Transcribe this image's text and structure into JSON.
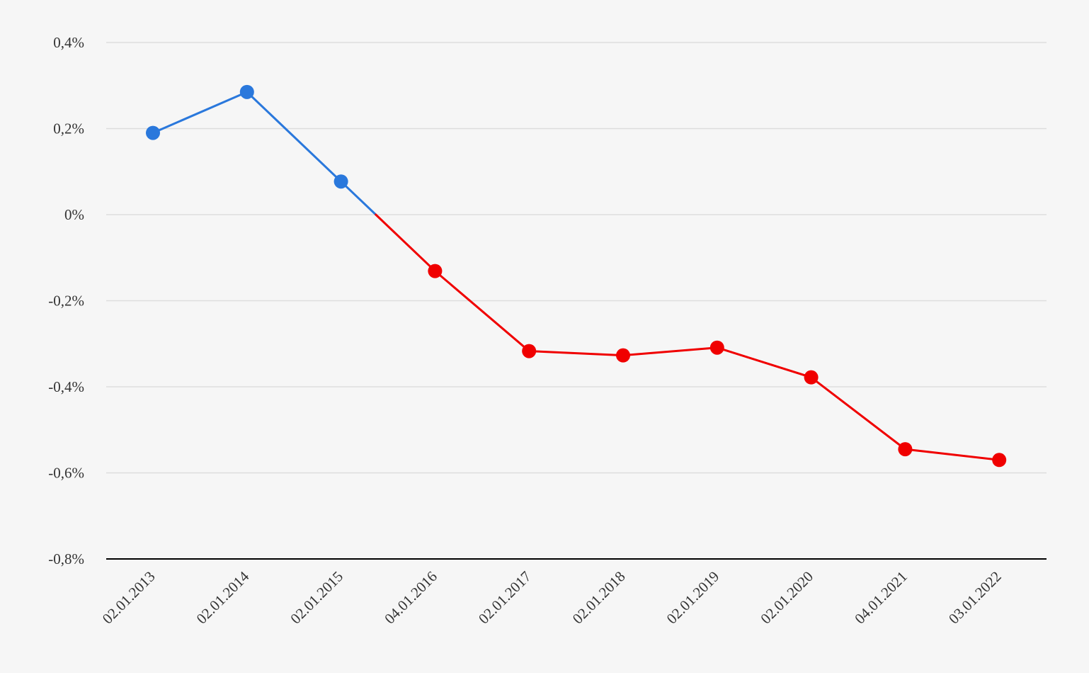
{
  "chart_data": {
    "type": "line",
    "title": "",
    "xlabel": "",
    "ylabel": "",
    "categories": [
      "02.01.2013",
      "02.01.2014",
      "02.01.2015",
      "04.01.2016",
      "02.01.2017",
      "02.01.2018",
      "02.01.2019",
      "02.01.2020",
      "04.01.2021",
      "03.01.2022"
    ],
    "series": [
      {
        "values": [
          0.19,
          0.285,
          0.077,
          -0.131,
          -0.317,
          -0.327,
          -0.309,
          -0.378,
          -0.545,
          -0.57
        ]
      }
    ],
    "ylim": [
      -0.8,
      0.4
    ],
    "y_ticks": [
      0.4,
      0.2,
      0,
      -0.2,
      -0.4,
      -0.6,
      -0.8
    ],
    "y_tick_labels": [
      "0,4%",
      "0,2%",
      "0%",
      "-0,2%",
      "-0,4%",
      "-0,6%",
      "-0,8%"
    ],
    "grid": true,
    "legend": "none",
    "colors": {
      "positive": "#2a78dc",
      "negative": "#f00000",
      "grid": "#dddddd",
      "axis": "#000000",
      "background": "#f6f6f6",
      "text": "#333333"
    }
  }
}
